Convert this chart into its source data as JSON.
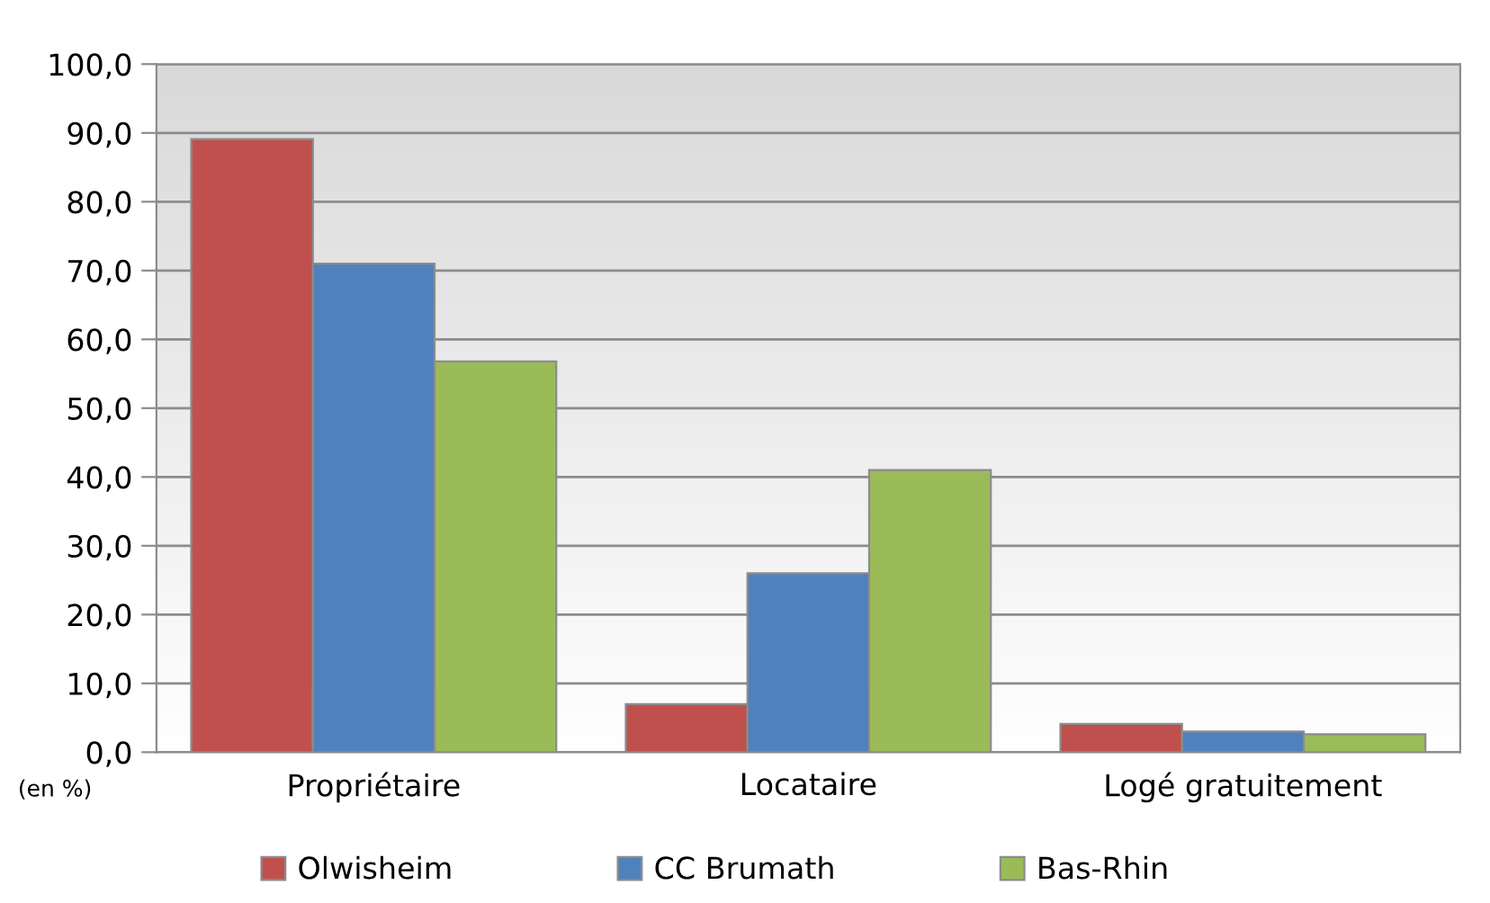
{
  "chart_data": {
    "type": "bar",
    "categories": [
      "Propriétaire",
      "Locataire",
      "Logé gratuitement"
    ],
    "series": [
      {
        "name": "Olwisheim",
        "color": "#c0504d",
        "values": [
          89.1,
          7.0,
          4.1
        ]
      },
      {
        "name": "CC Brumath",
        "color": "#4f81bd",
        "values": [
          71.0,
          26.0,
          3.0
        ]
      },
      {
        "name": "Bas-Rhin",
        "color": "#9bbb59",
        "values": [
          56.8,
          41.0,
          2.6
        ]
      }
    ],
    "ylim": [
      0,
      100
    ],
    "yticks": [
      {
        "value": 0,
        "label": "0,0"
      },
      {
        "value": 10,
        "label": "10,0"
      },
      {
        "value": 20,
        "label": "20,0"
      },
      {
        "value": 30,
        "label": "30,0"
      },
      {
        "value": 40,
        "label": "40,0"
      },
      {
        "value": 50,
        "label": "50,0"
      },
      {
        "value": 60,
        "label": "60,0"
      },
      {
        "value": 70,
        "label": "70,0"
      },
      {
        "value": 80,
        "label": "80,0"
      },
      {
        "value": 90,
        "label": "90,0"
      },
      {
        "value": 100,
        "label": "100,0"
      }
    ],
    "grid": "y",
    "legend": "bottom",
    "annotations": [
      "(en %)"
    ]
  }
}
